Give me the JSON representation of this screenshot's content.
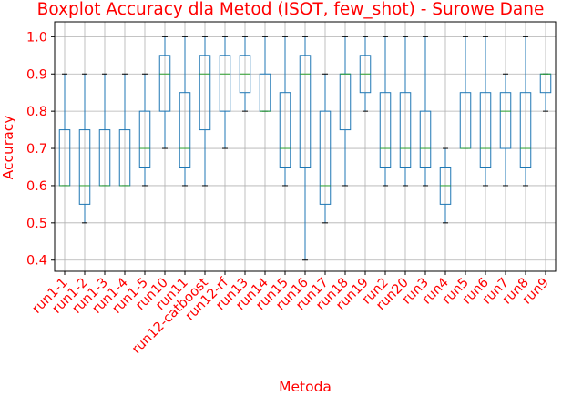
{
  "chart_data": {
    "type": "boxplot",
    "title": "Boxplot Accuracy dla Metod (ISOT, few_shot) - Surowe Dane",
    "xlabel": "Metoda",
    "ylabel": "Accuracy",
    "ylim": [
      0.37,
      1.04
    ],
    "yticks": [
      "0.4",
      "0.5",
      "0.6",
      "0.7",
      "0.8",
      "0.9",
      "1.0"
    ],
    "grid": true,
    "colors": {
      "text": "#ff0000",
      "box": "#1f77b4",
      "median": "#2ca02c",
      "grid": "#b0b0b0",
      "axis": "#000000"
    },
    "categories": [
      "run1-1",
      "run1-2",
      "run1-3",
      "run1-4",
      "run1-5",
      "run10",
      "run11",
      "run12-catboost",
      "run12-rf",
      "run13",
      "run14",
      "run15",
      "run16",
      "run17",
      "run18",
      "run19",
      "run2",
      "run20",
      "run3",
      "run4",
      "run5",
      "run6",
      "run7",
      "run8",
      "run9"
    ],
    "boxes": [
      {
        "min": 0.6,
        "q1": 0.6,
        "median": 0.6,
        "q3": 0.75,
        "max": 0.9
      },
      {
        "min": 0.5,
        "q1": 0.55,
        "median": 0.6,
        "q3": 0.75,
        "max": 0.9
      },
      {
        "min": 0.6,
        "q1": 0.6,
        "median": 0.6,
        "q3": 0.75,
        "max": 0.9
      },
      {
        "min": 0.6,
        "q1": 0.6,
        "median": 0.6,
        "q3": 0.75,
        "max": 0.9
      },
      {
        "min": 0.6,
        "q1": 0.65,
        "median": 0.7,
        "q3": 0.8,
        "max": 0.9
      },
      {
        "min": 0.7,
        "q1": 0.8,
        "median": 0.9,
        "q3": 0.95,
        "max": 1.0
      },
      {
        "min": 0.6,
        "q1": 0.65,
        "median": 0.7,
        "q3": 0.85,
        "max": 1.0
      },
      {
        "min": 0.6,
        "q1": 0.75,
        "median": 0.9,
        "q3": 0.95,
        "max": 1.0
      },
      {
        "min": 0.7,
        "q1": 0.8,
        "median": 0.9,
        "q3": 0.95,
        "max": 1.0
      },
      {
        "min": 0.8,
        "q1": 0.85,
        "median": 0.9,
        "q3": 0.95,
        "max": 1.0
      },
      {
        "min": 0.8,
        "q1": 0.8,
        "median": 0.8,
        "q3": 0.9,
        "max": 1.0
      },
      {
        "min": 0.6,
        "q1": 0.65,
        "median": 0.7,
        "q3": 0.85,
        "max": 1.0
      },
      {
        "min": 0.4,
        "q1": 0.65,
        "median": 0.9,
        "q3": 0.95,
        "max": 1.0
      },
      {
        "min": 0.5,
        "q1": 0.55,
        "median": 0.6,
        "q3": 0.8,
        "max": 0.9
      },
      {
        "min": 0.6,
        "q1": 0.75,
        "median": 0.9,
        "q3": 0.9,
        "max": 1.0
      },
      {
        "min": 0.8,
        "q1": 0.85,
        "median": 0.9,
        "q3": 0.95,
        "max": 1.0
      },
      {
        "min": 0.6,
        "q1": 0.65,
        "median": 0.7,
        "q3": 0.85,
        "max": 1.0
      },
      {
        "min": 0.6,
        "q1": 0.65,
        "median": 0.7,
        "q3": 0.85,
        "max": 1.0
      },
      {
        "min": 0.6,
        "q1": 0.65,
        "median": 0.7,
        "q3": 0.8,
        "max": 1.0
      },
      {
        "min": 0.5,
        "q1": 0.55,
        "median": 0.6,
        "q3": 0.65,
        "max": 0.7
      },
      {
        "min": 0.7,
        "q1": 0.7,
        "median": 0.7,
        "q3": 0.85,
        "max": 1.0
      },
      {
        "min": 0.6,
        "q1": 0.65,
        "median": 0.7,
        "q3": 0.85,
        "max": 1.0
      },
      {
        "min": 0.6,
        "q1": 0.7,
        "median": 0.8,
        "q3": 0.85,
        "max": 0.9
      },
      {
        "min": 0.6,
        "q1": 0.65,
        "median": 0.7,
        "q3": 0.85,
        "max": 1.0
      },
      {
        "min": 0.8,
        "q1": 0.85,
        "median": 0.9,
        "q3": 0.9,
        "max": 0.9
      }
    ]
  }
}
